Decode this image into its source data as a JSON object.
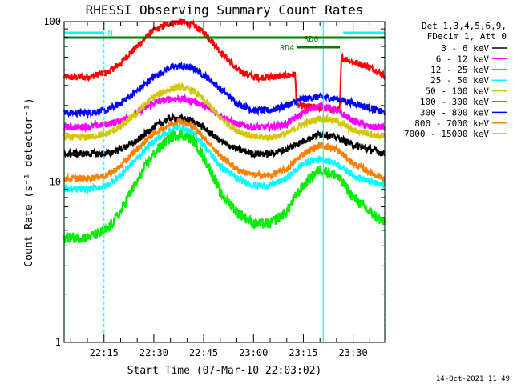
{
  "chart_data": {
    "type": "line",
    "title": "RHESSI Observing Summary Count Rates",
    "xlabel": "Start Time (07-Mar-10 22:03:02)",
    "ylabel": "Count Rate (s⁻¹ detector⁻¹)",
    "ylog": true,
    "ylim": [
      1,
      100
    ],
    "xlim_minutes_from_2200": [
      3.0,
      99.5
    ],
    "x_tick_labels": [
      "22:15",
      "22:30",
      "22:45",
      "23:00",
      "23:15",
      "23:30"
    ],
    "x_tick_minutes": [
      15,
      30,
      45,
      60,
      75,
      90
    ],
    "y_tick_labels": [
      "1",
      "10",
      "100"
    ],
    "y_tick_values": [
      1,
      10,
      100
    ],
    "legend": {
      "header": [
        "Det 1,3,4,5,6,9,",
        "FDecim 1, Att 0"
      ],
      "entries": [
        {
          "label": "3 - 6 keV",
          "color": "#000000"
        },
        {
          "label": "6 - 12 keV",
          "color": "#ff00ff"
        },
        {
          "label": "12 - 25 keV",
          "color": "#00ee00"
        },
        {
          "label": "25 - 50 keV",
          "color": "#00ffff"
        },
        {
          "label": "50 - 100 keV",
          "color": "#d2c800"
        },
        {
          "label": "100 - 300 keV",
          "color": "#ff0000"
        },
        {
          "label": "300 - 800 keV",
          "color": "#0000ff"
        },
        {
          "label": "800 - 7000 keV",
          "color": "#ff8000"
        },
        {
          "label": "7000 - 15000 keV",
          "color": "#808000"
        }
      ]
    },
    "series": [
      {
        "name": "100 - 300 keV",
        "color": "#ff0000",
        "x": [
          3,
          10,
          16,
          20,
          25,
          30,
          35,
          38,
          42,
          46,
          50,
          55,
          60,
          65,
          70,
          72.5,
          73,
          86,
          86.5,
          90,
          95,
          99.5
        ],
        "y": [
          45,
          45,
          48,
          55,
          70,
          88,
          98,
          100,
          95,
          82,
          65,
          50,
          45,
          45,
          46,
          47,
          30,
          28,
          60,
          56,
          52,
          46
        ]
      },
      {
        "name": "300 - 800 keV",
        "color": "#0000ff",
        "x": [
          3,
          10,
          16,
          20,
          25,
          30,
          35,
          38,
          42,
          46,
          50,
          55,
          60,
          65,
          70,
          75,
          80,
          85,
          90,
          95,
          99.5
        ],
        "y": [
          27,
          27,
          28,
          31,
          37,
          45,
          52,
          53,
          51,
          45,
          38,
          31,
          28,
          28,
          30,
          33,
          34,
          33,
          31,
          29,
          27
        ]
      },
      {
        "name": "6 - 12 keV",
        "color": "#ff00ff",
        "x": [
          3,
          10,
          16,
          20,
          25,
          30,
          35,
          38,
          42,
          46,
          50,
          55,
          60,
          65,
          70,
          75,
          80,
          85,
          90,
          95,
          99.5
        ],
        "y": [
          22,
          22,
          23,
          24,
          27,
          31,
          33,
          33,
          32,
          29,
          26,
          23,
          22,
          22,
          23,
          27,
          30,
          28,
          24,
          22,
          22
        ]
      },
      {
        "name": "50 - 100 keV",
        "color": "#d2c800",
        "x": [
          3,
          10,
          16,
          20,
          25,
          30,
          35,
          38,
          42,
          46,
          50,
          55,
          60,
          65,
          70,
          75,
          80,
          85,
          90,
          95,
          99.5
        ],
        "y": [
          19,
          19,
          20,
          22,
          27,
          34,
          38,
          39,
          37,
          31,
          25,
          21,
          19,
          19,
          20,
          23,
          25,
          24,
          21,
          20,
          19
        ]
      },
      {
        "name": "3 - 6 keV",
        "color": "#000000",
        "x": [
          3,
          10,
          16,
          20,
          25,
          30,
          35,
          38,
          42,
          46,
          50,
          55,
          60,
          65,
          70,
          75,
          80,
          85,
          90,
          95,
          99.5
        ],
        "y": [
          15,
          15,
          15,
          16,
          18,
          22,
          25,
          25,
          24,
          21,
          18,
          16,
          15,
          15,
          16,
          18,
          20,
          19,
          17,
          16,
          15
        ]
      },
      {
        "name": "800 - 7000 keV",
        "color": "#ff8000",
        "x": [
          3,
          10,
          16,
          20,
          25,
          30,
          35,
          38,
          42,
          46,
          50,
          55,
          60,
          65,
          70,
          75,
          80,
          85,
          90,
          95,
          99.5
        ],
        "y": [
          10.5,
          10.5,
          11,
          12.5,
          16,
          20,
          23,
          24,
          22,
          18,
          14.5,
          12,
          11,
          11,
          12,
          15,
          17,
          16,
          13,
          11.5,
          10.5
        ]
      },
      {
        "name": "25 - 50 keV",
        "color": "#00ffff",
        "x": [
          3,
          10,
          16,
          20,
          25,
          30,
          35,
          38,
          42,
          46,
          50,
          55,
          60,
          65,
          70,
          75,
          80,
          85,
          90,
          95,
          99.5
        ],
        "y": [
          9,
          9,
          9.5,
          11,
          14,
          18,
          21,
          22,
          20,
          16,
          12.5,
          10.5,
          9.5,
          9.5,
          10.5,
          13,
          14,
          13,
          11,
          10,
          9.5
        ]
      },
      {
        "name": "12 - 25 keV",
        "color": "#00ee00",
        "x": [
          3,
          10,
          16,
          20,
          25,
          30,
          35,
          38,
          42,
          46,
          50,
          55,
          60,
          65,
          70,
          75,
          80,
          85,
          90,
          95,
          99.5
        ],
        "y": [
          4.5,
          4.5,
          5,
          6.5,
          10,
          15,
          19,
          20,
          18,
          13,
          8.5,
          6.5,
          5.5,
          5.5,
          6.5,
          9.5,
          12,
          11,
          8,
          6.5,
          5.5
        ]
      }
    ],
    "attenuator_state_bars": [
      {
        "label": "N",
        "color": "#00ffff",
        "x": [
          3,
          15
        ]
      },
      {
        "label": "",
        "color": "#00ffff",
        "x": [
          87,
          99.5
        ]
      },
      {
        "label": "",
        "color": "#008000",
        "x": [
          3,
          99.5
        ]
      },
      {
        "label": "RD0",
        "color": "#008000",
        "x": [
          74,
          86
        ]
      },
      {
        "label": "RD4",
        "color": "#008000",
        "x": [
          73,
          86
        ]
      }
    ],
    "vertical_markers_minutes": [
      {
        "x": 3,
        "style": "solid"
      },
      {
        "x": 15,
        "style": "dashed"
      },
      {
        "x": 81,
        "style": "solid"
      },
      {
        "x": 99.5,
        "style": "dashed"
      }
    ]
  },
  "timestamp": "14-Oct-2021 11:49"
}
